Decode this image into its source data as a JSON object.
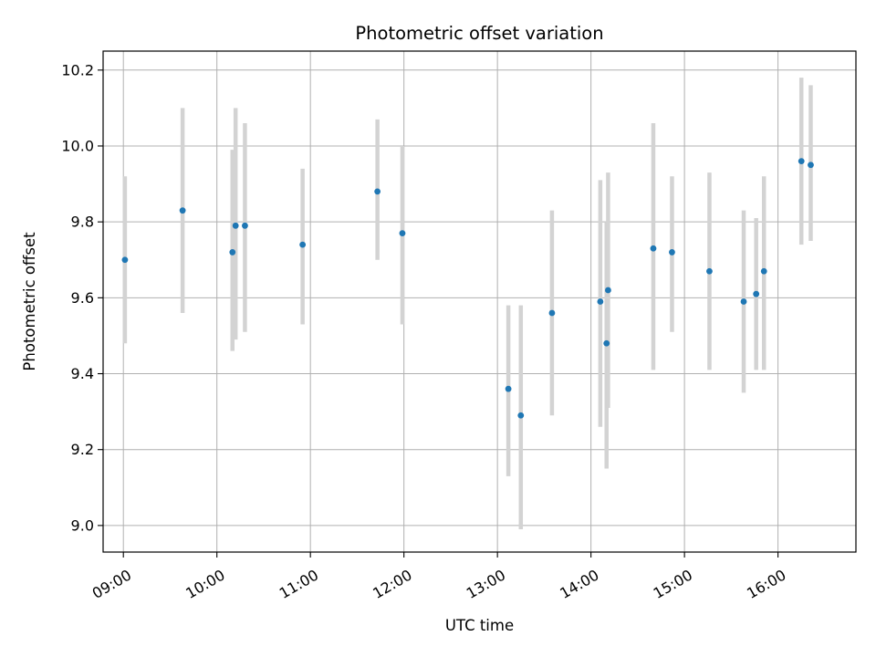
{
  "chart_data": {
    "type": "scatter",
    "title": "Photometric offset variation",
    "xlabel": "UTC time",
    "ylabel": "Photometric offset",
    "x_axis": {
      "kind": "time",
      "range": [
        "08:47",
        "16:50"
      ],
      "ticks": [
        "09:00",
        "10:00",
        "11:00",
        "12:00",
        "13:00",
        "14:00",
        "15:00",
        "16:00"
      ],
      "tick_rotation": "30"
    },
    "y_axis": {
      "range": [
        8.93,
        10.25
      ],
      "ticks": [
        "9.0",
        "9.2",
        "9.4",
        "9.6",
        "9.8",
        "10.0",
        "10.2"
      ]
    },
    "grid": true,
    "legend": "none",
    "colors": {
      "point": "#1f77b4",
      "errorbar": "#d3d3d3",
      "grid": "#b0b0b0"
    },
    "points": [
      {
        "time": "09:01",
        "y": 9.7,
        "ymin": 9.48,
        "ymax": 9.92
      },
      {
        "time": "09:38",
        "y": 9.83,
        "ymin": 9.56,
        "ymax": 10.1
      },
      {
        "time": "10:10",
        "y": 9.72,
        "ymin": 9.46,
        "ymax": 9.99
      },
      {
        "time": "10:12",
        "y": 9.79,
        "ymin": 9.49,
        "ymax": 10.1
      },
      {
        "time": "10:18",
        "y": 9.79,
        "ymin": 9.51,
        "ymax": 10.06
      },
      {
        "time": "10:55",
        "y": 9.74,
        "ymin": 9.53,
        "ymax": 9.94
      },
      {
        "time": "11:43",
        "y": 9.88,
        "ymin": 9.7,
        "ymax": 10.07
      },
      {
        "time": "11:59",
        "y": 9.77,
        "ymin": 9.53,
        "ymax": 10.0
      },
      {
        "time": "13:07",
        "y": 9.36,
        "ymin": 9.13,
        "ymax": 9.58
      },
      {
        "time": "13:15",
        "y": 9.29,
        "ymin": 8.99,
        "ymax": 9.58
      },
      {
        "time": "13:35",
        "y": 9.56,
        "ymin": 9.29,
        "ymax": 9.83
      },
      {
        "time": "14:06",
        "y": 9.59,
        "ymin": 9.26,
        "ymax": 9.91
      },
      {
        "time": "14:10",
        "y": 9.48,
        "ymin": 9.15,
        "ymax": 9.8
      },
      {
        "time": "14:11",
        "y": 9.62,
        "ymin": 9.31,
        "ymax": 9.93
      },
      {
        "time": "14:40",
        "y": 9.73,
        "ymin": 9.41,
        "ymax": 10.06
      },
      {
        "time": "14:52",
        "y": 9.72,
        "ymin": 9.51,
        "ymax": 9.92
      },
      {
        "time": "15:16",
        "y": 9.67,
        "ymin": 9.41,
        "ymax": 9.93
      },
      {
        "time": "15:38",
        "y": 9.59,
        "ymin": 9.35,
        "ymax": 9.83
      },
      {
        "time": "15:46",
        "y": 9.61,
        "ymin": 9.41,
        "ymax": 9.81
      },
      {
        "time": "15:51",
        "y": 9.67,
        "ymin": 9.41,
        "ymax": 9.92
      },
      {
        "time": "16:15",
        "y": 9.96,
        "ymin": 9.74,
        "ymax": 10.18
      },
      {
        "time": "16:21",
        "y": 9.95,
        "ymin": 9.75,
        "ymax": 10.16
      }
    ]
  }
}
